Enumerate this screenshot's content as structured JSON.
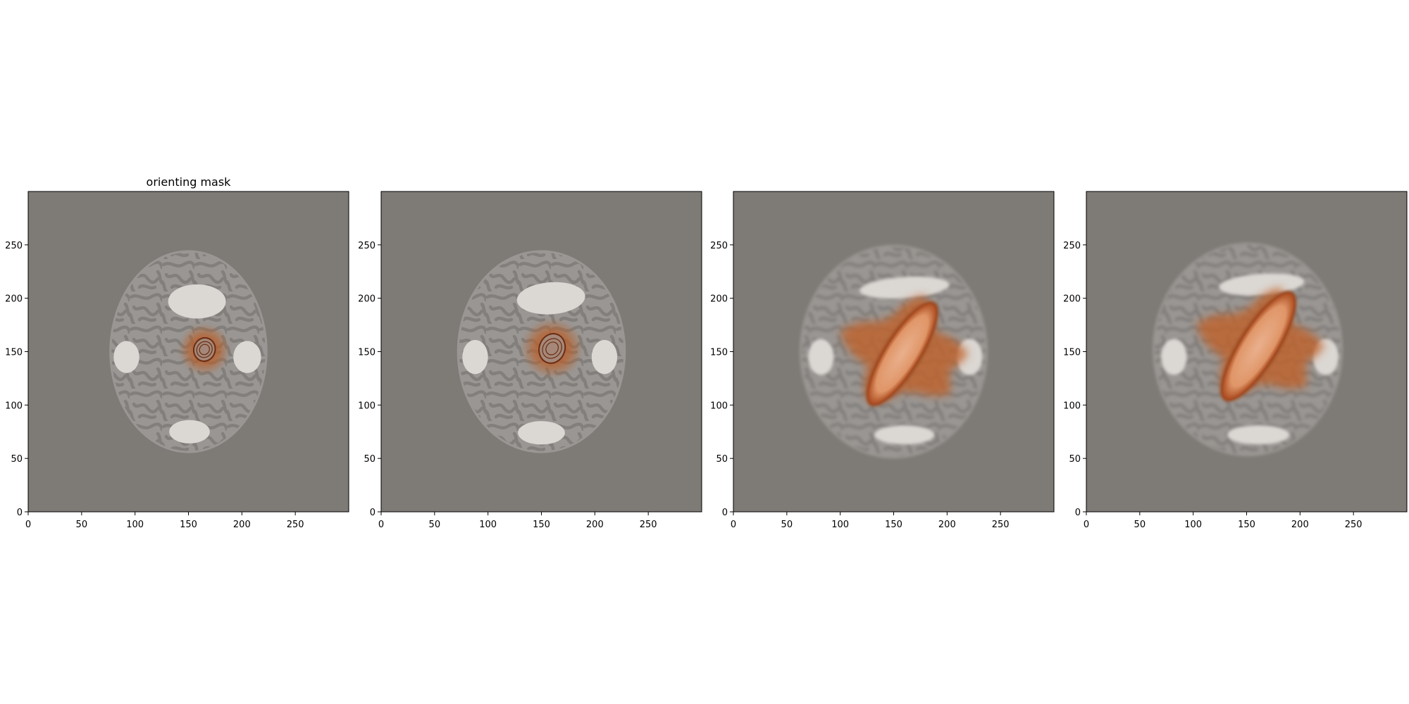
{
  "figure": {
    "background": "#ffffff"
  },
  "colors": {
    "panel_background": "#7e7a76",
    "phantom_body": "#9a9693",
    "pattern": "#7f7c79",
    "bright_region": "#dbd7d3",
    "overlay": "#c0622a",
    "overlay_edge": "#6a2c10",
    "axis": "#000000"
  },
  "chart_data": [
    {
      "type": "heatmap",
      "title": "orienting mask",
      "xlim": [
        0,
        300
      ],
      "ylim": [
        0,
        300
      ],
      "xticks": [
        0,
        50,
        100,
        150,
        200,
        250
      ],
      "yticks": [
        0,
        50,
        100,
        150,
        200,
        250
      ],
      "xticklabels": [
        "0",
        "50",
        "100",
        "150",
        "200",
        "250"
      ],
      "yticklabels": [
        "0",
        "50",
        "100",
        "150",
        "200",
        "250"
      ],
      "phantom": {
        "cx": 150,
        "cy": 150,
        "rx": 74,
        "ry": 95,
        "blur": 0
      },
      "bright_regions": [
        {
          "cx": 158,
          "cy": 197,
          "rx": 27,
          "ry": 16,
          "rot": 0
        },
        {
          "cx": 151,
          "cy": 75,
          "rx": 19,
          "ry": 11,
          "rot": 0
        },
        {
          "cx": 92,
          "cy": 145,
          "rx": 12,
          "ry": 15,
          "rot": 0
        },
        {
          "cx": 205,
          "cy": 145,
          "rx": 13,
          "ry": 15,
          "rot": 0
        }
      ],
      "overlay": {
        "shape": "blob",
        "cx": 165,
        "cy": 152,
        "rx": 24,
        "ry": 24,
        "rot": 0,
        "core_rx": 10,
        "core_ry": 11,
        "core_rot": 15
      }
    },
    {
      "type": "heatmap",
      "title": "",
      "xlim": [
        0,
        300
      ],
      "ylim": [
        0,
        300
      ],
      "xticks": [
        0,
        50,
        100,
        150,
        200,
        250
      ],
      "yticks": [
        0,
        50,
        100,
        150,
        200,
        250
      ],
      "xticklabels": [
        "0",
        "50",
        "100",
        "150",
        "200",
        "250"
      ],
      "yticklabels": [
        "0",
        "50",
        "100",
        "150",
        "200",
        "250"
      ],
      "phantom": {
        "cx": 150,
        "cy": 150,
        "rx": 79,
        "ry": 95,
        "blur": 0
      },
      "bright_regions": [
        {
          "cx": 159,
          "cy": 200,
          "rx": 32,
          "ry": 15,
          "rot": -4
        },
        {
          "cx": 150,
          "cy": 74,
          "rx": 22,
          "ry": 11,
          "rot": 0
        },
        {
          "cx": 88,
          "cy": 145,
          "rx": 12,
          "ry": 16,
          "rot": 0
        },
        {
          "cx": 209,
          "cy": 145,
          "rx": 12,
          "ry": 16,
          "rot": 0
        }
      ],
      "overlay": {
        "shape": "blob",
        "cx": 160,
        "cy": 153,
        "rx": 29,
        "ry": 28,
        "rot": 0,
        "core_rx": 12,
        "core_ry": 14,
        "core_rot": 20
      }
    },
    {
      "type": "heatmap",
      "title": "",
      "xlim": [
        0,
        300
      ],
      "ylim": [
        0,
        300
      ],
      "xticks": [
        0,
        50,
        100,
        150,
        200,
        250
      ],
      "yticks": [
        0,
        50,
        100,
        150,
        200,
        250
      ],
      "xticklabels": [
        "0",
        "50",
        "100",
        "150",
        "200",
        "250"
      ],
      "yticklabels": [
        "0",
        "50",
        "100",
        "150",
        "200",
        "250"
      ],
      "phantom": {
        "cx": 150,
        "cy": 150,
        "rx": 88,
        "ry": 100,
        "blur": 2
      },
      "bright_regions": [
        {
          "cx": 160,
          "cy": 210,
          "rx": 42,
          "ry": 10,
          "rot": -4
        },
        {
          "cx": 160,
          "cy": 72,
          "rx": 28,
          "ry": 9,
          "rot": 0
        },
        {
          "cx": 82,
          "cy": 145,
          "rx": 12,
          "ry": 17,
          "rot": 0
        },
        {
          "cx": 221,
          "cy": 145,
          "rx": 12,
          "ry": 17,
          "rot": 0
        }
      ],
      "overlay": {
        "shape": "star",
        "cx": 158,
        "cy": 148,
        "core_rx": 16,
        "core_ry": 55,
        "core_rot": 32
      }
    },
    {
      "type": "heatmap",
      "title": "",
      "xlim": [
        0,
        300
      ],
      "ylim": [
        0,
        300
      ],
      "xticks": [
        0,
        50,
        100,
        150,
        200,
        250
      ],
      "yticks": [
        0,
        50,
        100,
        150,
        200,
        250
      ],
      "xticklabels": [
        "0",
        "50",
        "100",
        "150",
        "200",
        "250"
      ],
      "yticklabels": [
        "0",
        "50",
        "100",
        "150",
        "200",
        "250"
      ],
      "phantom": {
        "cx": 151,
        "cy": 152,
        "rx": 89,
        "ry": 100,
        "blur": 2
      },
      "bright_regions": [
        {
          "cx": 164,
          "cy": 213,
          "rx": 40,
          "ry": 10,
          "rot": -4
        },
        {
          "cx": 161,
          "cy": 72,
          "rx": 29,
          "ry": 9,
          "rot": 0
        },
        {
          "cx": 82,
          "cy": 145,
          "rx": 12,
          "ry": 17,
          "rot": 0
        },
        {
          "cx": 224,
          "cy": 145,
          "rx": 12,
          "ry": 17,
          "rot": 0
        }
      ],
      "overlay": {
        "shape": "star",
        "cx": 161,
        "cy": 155,
        "core_rx": 17,
        "core_ry": 58,
        "core_rot": 32
      }
    }
  ]
}
